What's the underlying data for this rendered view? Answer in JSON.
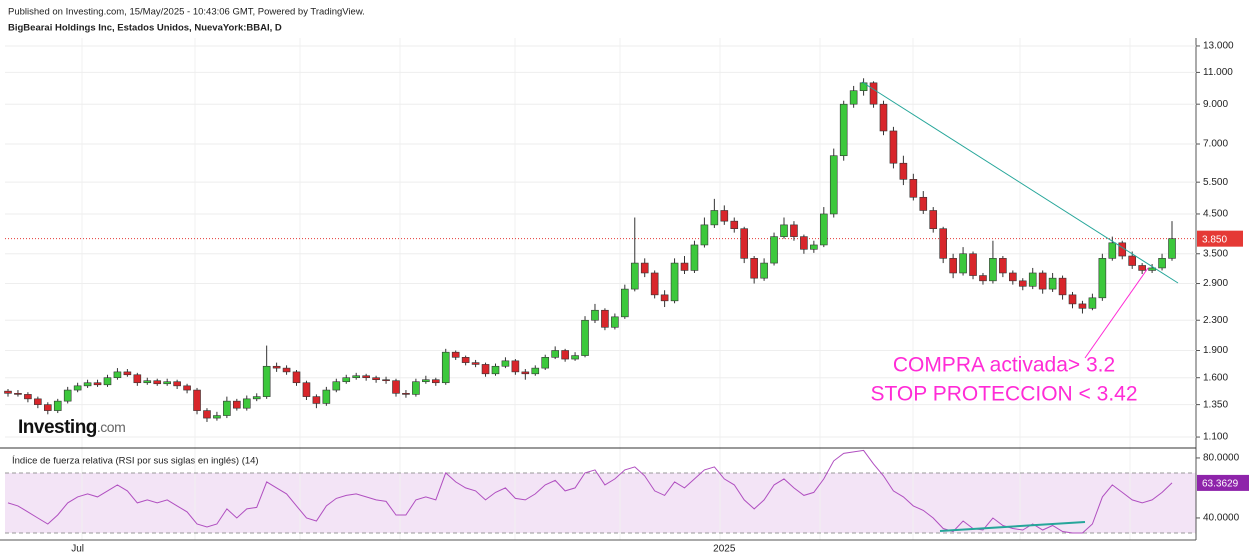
{
  "chart_data": [
    {
      "type": "candlestick",
      "subtitle": "Published on Investing.com, 15/May/2025 - 10:43:06 GMT, Powered by TradingView.",
      "title": "BigBearai Holdings Inc, Estados Unidos, NuevaYork:BBAI, D",
      "categories": [
        null,
        null,
        null,
        null,
        null,
        null,
        null,
        "Jul",
        null,
        null,
        null,
        null,
        null,
        null,
        null,
        null,
        null,
        null,
        null,
        null,
        null,
        null,
        null,
        null,
        null,
        null,
        null,
        null,
        null,
        null,
        null,
        null,
        null,
        null,
        null,
        null,
        null,
        null,
        null,
        null,
        null,
        null,
        null,
        null,
        null,
        null,
        null,
        null,
        null,
        null,
        null,
        null,
        null,
        null,
        null,
        null,
        null,
        null,
        null,
        null,
        null,
        null,
        null,
        null,
        null,
        null,
        null,
        null,
        null,
        null,
        null,
        null,
        "2025",
        null,
        null,
        null,
        null,
        null,
        null,
        null,
        null,
        null,
        null,
        null,
        null,
        null,
        null,
        null,
        null,
        null,
        null,
        null,
        null,
        null,
        null,
        null,
        null,
        null,
        null,
        null,
        null,
        null,
        null,
        null,
        null,
        null,
        null,
        null,
        null,
        null,
        null,
        null,
        null,
        null,
        null,
        null,
        null,
        null
      ],
      "open": [
        1.47,
        1.45,
        1.44,
        1.4,
        1.35,
        1.3,
        1.38,
        1.48,
        1.52,
        1.55,
        1.53,
        1.6,
        1.66,
        1.63,
        1.55,
        1.57,
        1.54,
        1.56,
        1.52,
        1.48,
        1.3,
        1.24,
        1.26,
        1.38,
        1.32,
        1.4,
        1.42,
        1.72,
        1.7,
        1.66,
        1.55,
        1.42,
        1.36,
        1.48,
        1.56,
        1.6,
        1.62,
        1.6,
        1.58,
        1.57,
        1.45,
        1.44,
        1.56,
        1.58,
        1.55,
        1.88,
        1.82,
        1.76,
        1.74,
        1.64,
        1.72,
        1.78,
        1.66,
        1.64,
        1.7,
        1.82,
        1.9,
        1.8,
        1.84,
        2.3,
        2.45,
        2.2,
        2.35,
        2.8,
        3.3,
        3.1,
        2.7,
        2.6,
        3.3,
        3.15,
        3.7,
        4.2,
        4.6,
        4.3,
        4.1,
        3.4,
        3.0,
        3.3,
        3.9,
        4.2,
        3.9,
        3.6,
        3.7,
        4.5,
        6.5,
        9.0,
        9.8,
        10.3,
        9.0,
        7.6,
        6.2,
        5.6,
        5.0,
        4.6,
        4.1,
        3.4,
        3.1,
        3.5,
        3.05,
        2.95,
        3.4,
        3.1,
        2.95,
        2.85,
        3.1,
        2.8,
        3.0,
        2.7,
        2.55,
        2.48,
        2.65,
        3.4,
        3.75,
        3.45,
        3.25,
        3.15,
        3.2,
        3.4
      ],
      "high": [
        1.49,
        1.48,
        1.46,
        1.42,
        1.37,
        1.4,
        1.51,
        1.55,
        1.58,
        1.58,
        1.63,
        1.7,
        1.69,
        1.65,
        1.6,
        1.59,
        1.59,
        1.58,
        1.54,
        1.5,
        1.32,
        1.29,
        1.42,
        1.4,
        1.43,
        1.45,
        1.96,
        1.76,
        1.73,
        1.68,
        1.57,
        1.44,
        1.51,
        1.59,
        1.63,
        1.65,
        1.64,
        1.62,
        1.61,
        1.59,
        1.48,
        1.59,
        1.62,
        1.6,
        1.92,
        1.9,
        1.84,
        1.79,
        1.76,
        1.75,
        1.82,
        1.8,
        1.69,
        1.73,
        1.85,
        1.95,
        1.92,
        1.88,
        2.36,
        2.55,
        2.48,
        2.4,
        2.88,
        4.4,
        3.4,
        3.15,
        2.78,
        3.4,
        3.45,
        3.8,
        4.4,
        4.95,
        4.75,
        4.4,
        4.15,
        3.45,
        3.4,
        4.0,
        4.4,
        4.3,
        3.95,
        3.8,
        4.7,
        6.8,
        9.2,
        10.1,
        10.6,
        10.4,
        9.2,
        7.8,
        6.5,
        5.8,
        5.2,
        4.7,
        4.15,
        3.5,
        3.65,
        3.55,
        3.1,
        3.8,
        3.45,
        3.15,
        3.0,
        3.2,
        3.15,
        3.1,
        3.05,
        2.75,
        2.6,
        2.72,
        3.5,
        3.9,
        3.8,
        3.55,
        3.3,
        3.28,
        3.5,
        4.3
      ],
      "low": [
        1.42,
        1.42,
        1.37,
        1.32,
        1.27,
        1.28,
        1.36,
        1.46,
        1.5,
        1.51,
        1.51,
        1.58,
        1.61,
        1.52,
        1.53,
        1.52,
        1.52,
        1.49,
        1.45,
        1.27,
        1.21,
        1.22,
        1.24,
        1.3,
        1.3,
        1.38,
        1.4,
        1.66,
        1.63,
        1.52,
        1.39,
        1.32,
        1.34,
        1.46,
        1.54,
        1.58,
        1.57,
        1.55,
        1.54,
        1.42,
        1.41,
        1.42,
        1.54,
        1.52,
        1.53,
        1.79,
        1.73,
        1.71,
        1.61,
        1.62,
        1.7,
        1.63,
        1.58,
        1.62,
        1.68,
        1.8,
        1.77,
        1.78,
        1.82,
        2.26,
        2.16,
        2.17,
        2.32,
        2.76,
        3.02,
        2.64,
        2.5,
        2.56,
        3.08,
        3.1,
        3.64,
        4.12,
        4.2,
        4.0,
        3.3,
        2.9,
        2.95,
        3.25,
        3.85,
        3.8,
        3.5,
        3.52,
        3.65,
        4.4,
        6.3,
        8.8,
        9.5,
        8.8,
        7.4,
        6.0,
        5.4,
        4.9,
        4.5,
        4.0,
        3.3,
        3.0,
        3.05,
        2.98,
        2.88,
        2.9,
        3.02,
        2.88,
        2.78,
        2.8,
        2.72,
        2.75,
        2.62,
        2.48,
        2.4,
        2.45,
        2.6,
        3.35,
        3.38,
        3.18,
        3.08,
        3.1,
        3.15,
        3.35
      ],
      "close": [
        1.45,
        1.44,
        1.4,
        1.35,
        1.3,
        1.38,
        1.48,
        1.52,
        1.55,
        1.53,
        1.6,
        1.66,
        1.63,
        1.55,
        1.57,
        1.54,
        1.56,
        1.52,
        1.48,
        1.3,
        1.24,
        1.26,
        1.38,
        1.32,
        1.4,
        1.42,
        1.72,
        1.7,
        1.66,
        1.55,
        1.42,
        1.36,
        1.48,
        1.56,
        1.6,
        1.62,
        1.6,
        1.58,
        1.57,
        1.45,
        1.44,
        1.56,
        1.58,
        1.55,
        1.88,
        1.82,
        1.76,
        1.74,
        1.64,
        1.72,
        1.78,
        1.66,
        1.64,
        1.7,
        1.82,
        1.9,
        1.8,
        1.84,
        2.3,
        2.45,
        2.2,
        2.35,
        2.8,
        3.3,
        3.1,
        2.7,
        2.6,
        3.3,
        3.15,
        3.7,
        4.2,
        4.6,
        4.3,
        4.1,
        3.4,
        3.0,
        3.3,
        3.9,
        4.2,
        3.9,
        3.6,
        3.7,
        4.5,
        6.5,
        9.0,
        9.8,
        10.3,
        9.0,
        7.6,
        6.2,
        5.6,
        5.0,
        4.6,
        4.1,
        3.4,
        3.1,
        3.5,
        3.05,
        2.95,
        3.4,
        3.1,
        2.95,
        2.85,
        3.1,
        2.8,
        3.0,
        2.7,
        2.55,
        2.48,
        2.65,
        3.4,
        3.75,
        3.45,
        3.25,
        3.15,
        3.2,
        3.4,
        3.85
      ],
      "up_color": "#3cc83c",
      "down_color": "#d8262b",
      "log_scale": true,
      "ylim": [
        1.033,
        13.67
      ],
      "yticks": [
        {
          "value": 1.1,
          "label": "1.100"
        },
        {
          "value": 1.35,
          "label": "1.350"
        },
        {
          "value": 1.6,
          "label": "1.600"
        },
        {
          "value": 1.9,
          "label": "1.900"
        },
        {
          "value": 2.3,
          "label": "2.300"
        },
        {
          "value": 2.9,
          "label": "2.900"
        },
        {
          "value": 3.5,
          "label": "3.500"
        },
        {
          "value": 4.5,
          "label": "4.500"
        },
        {
          "value": 5.5,
          "label": "5.500"
        },
        {
          "value": 7,
          "label": "7.000"
        },
        {
          "value": 9,
          "label": "9.000"
        },
        {
          "value": 11,
          "label": "11.000"
        },
        {
          "value": 13,
          "label": "13.000"
        }
      ],
      "last_price": {
        "value": 3.85,
        "label": "3.850"
      },
      "last_price_color": "#e53935",
      "annotations": [
        "COMPRA activada> 3.2",
        "STOP PROTECCION < 3.42"
      ],
      "annotation_color": "#ff2bd6"
    },
    {
      "type": "line",
      "title": "Índice de fuerza relativa (RSI por sus siglas en inglés) (14)",
      "values": [
        50,
        48,
        44,
        40,
        36,
        42,
        50,
        54,
        56,
        54,
        58,
        62,
        58,
        50,
        52,
        50,
        52,
        48,
        44,
        36,
        34,
        36,
        46,
        40,
        46,
        47,
        64,
        60,
        56,
        48,
        40,
        38,
        48,
        53,
        55,
        56,
        54,
        52,
        51,
        42,
        42,
        52,
        54,
        52,
        70,
        64,
        60,
        58,
        52,
        57,
        60,
        53,
        52,
        56,
        62,
        65,
        58,
        60,
        70,
        72,
        62,
        66,
        72,
        74,
        68,
        58,
        55,
        64,
        60,
        66,
        72,
        74,
        66,
        62,
        52,
        46,
        52,
        62,
        66,
        60,
        55,
        57,
        66,
        78,
        83,
        84,
        85,
        76,
        68,
        58,
        54,
        48,
        45,
        40,
        33,
        31,
        38,
        33,
        32,
        40,
        35,
        33,
        32,
        36,
        32,
        35,
        31,
        30,
        30,
        36,
        54,
        62,
        57,
        52,
        50,
        52,
        57,
        63.3629
      ],
      "color": "#b04fc0",
      "ylim": [
        25.3,
        85.3
      ],
      "yticks": [
        {
          "value": 80,
          "label": "80.0000"
        },
        {
          "value": 40,
          "label": "40.0000"
        }
      ],
      "bands": [
        30,
        70
      ],
      "band_color": "#f3e4f6"
    }
  ],
  "logo": {
    "name": "Investing",
    "suffix": ".com"
  }
}
